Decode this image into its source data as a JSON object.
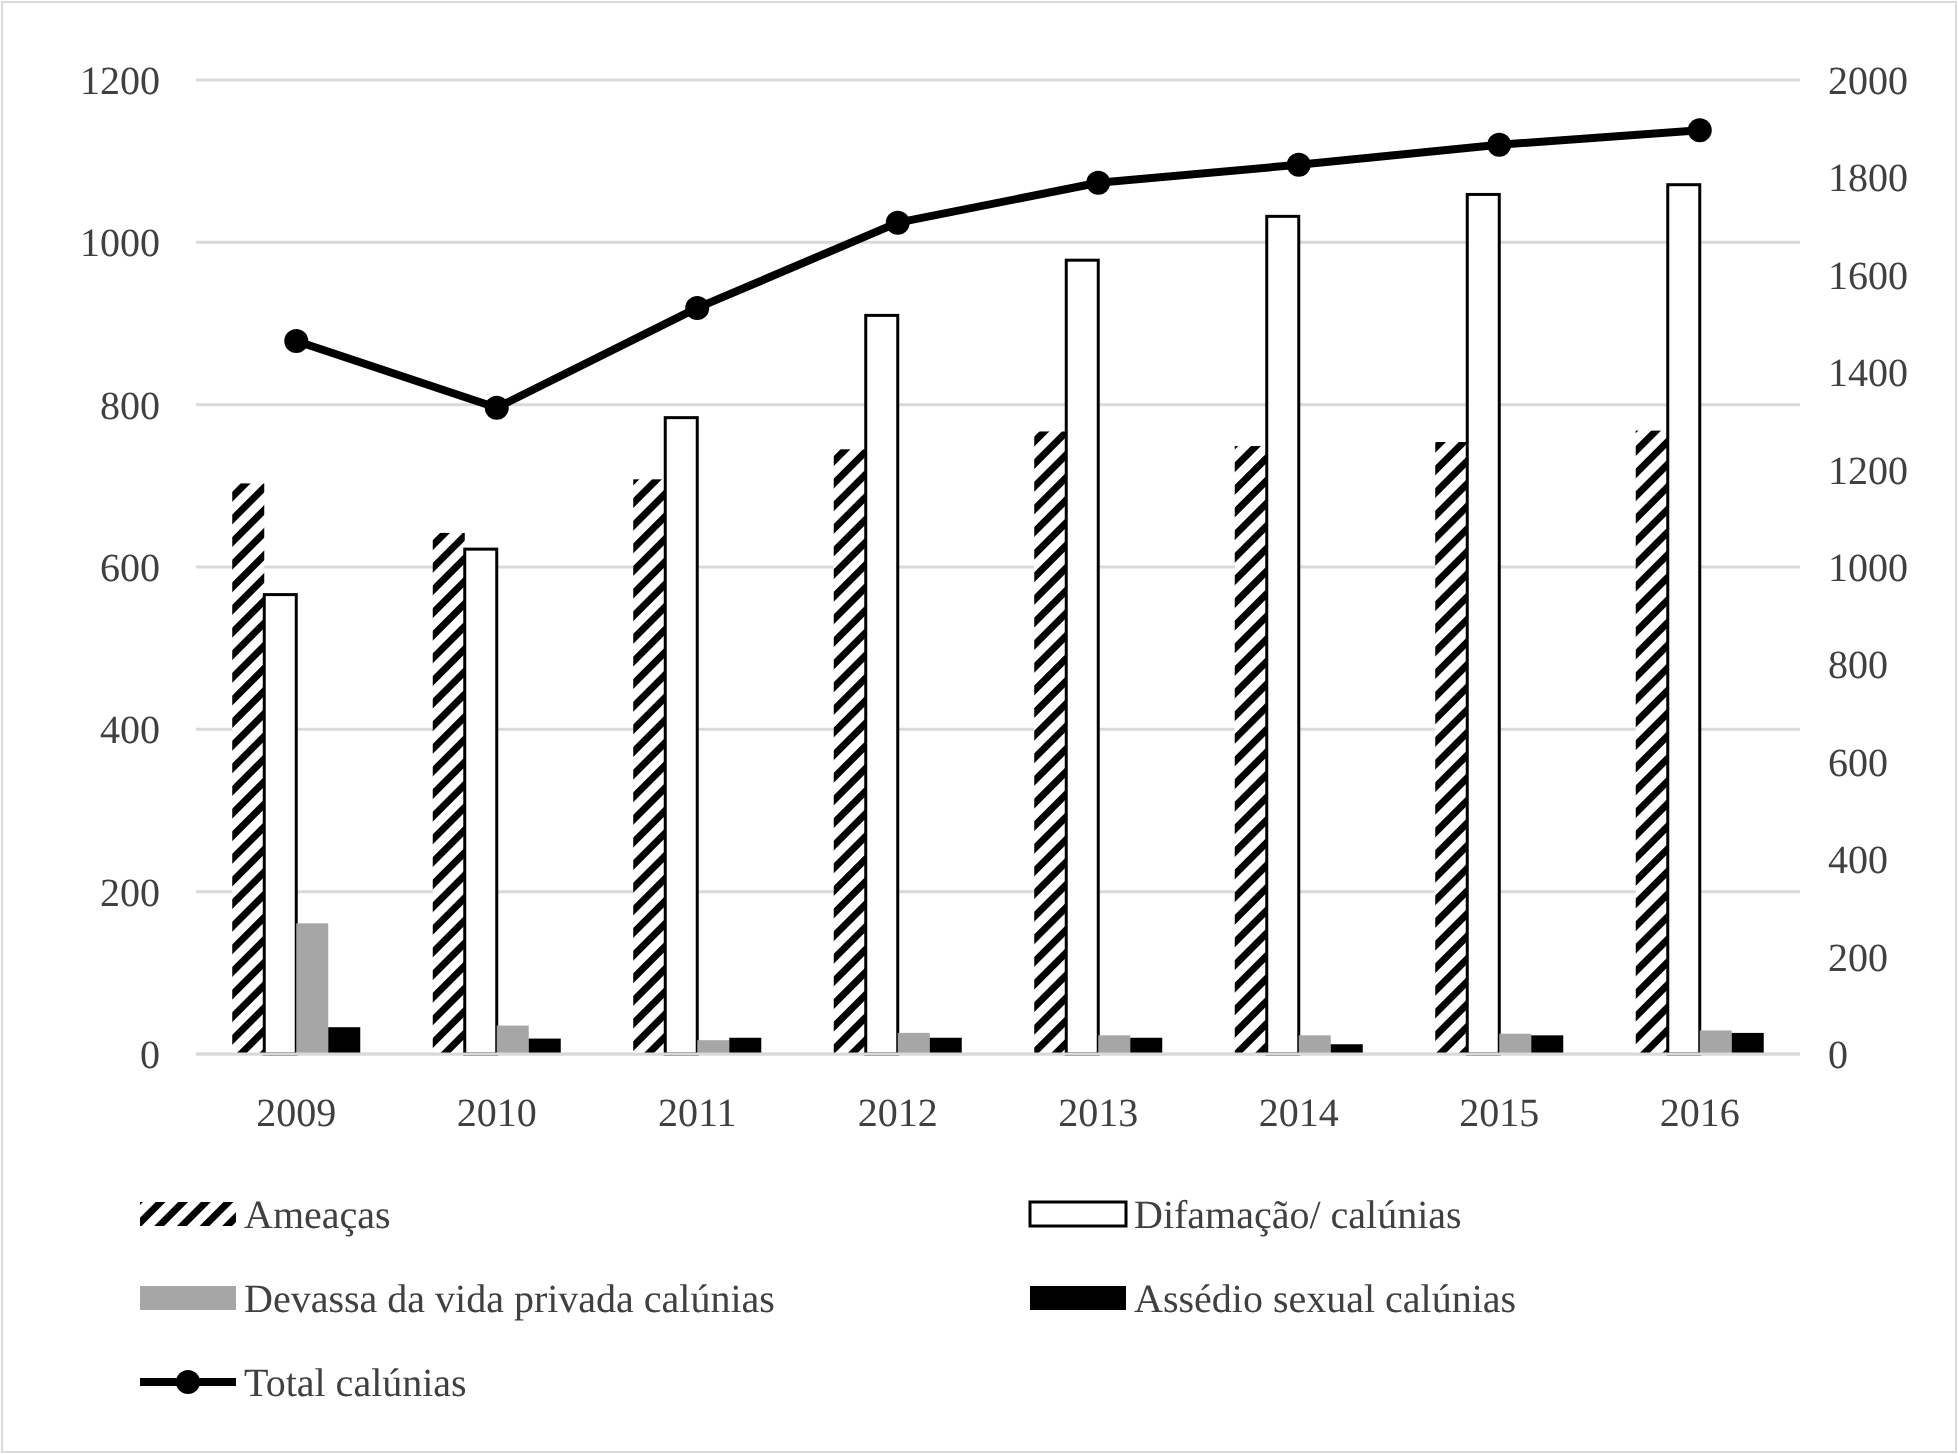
{
  "chart_data": {
    "type": "bar",
    "categories": [
      "2009",
      "2010",
      "2011",
      "2012",
      "2013",
      "2014",
      "2015",
      "2016"
    ],
    "series": [
      {
        "name": "Ameaças",
        "color": "#000000",
        "values": [
          703,
          642,
          708,
          745,
          767,
          749,
          754,
          768
        ]
      },
      {
        "name": "Difamação/ calúnias",
        "color": "#ffffff",
        "values": [
          566,
          622,
          784,
          910,
          978,
          1032,
          1059,
          1071
        ]
      },
      {
        "name": "Devassa da vida privada calúnias",
        "color": "#a6a6a6",
        "values": [
          161,
          35,
          17,
          26,
          23,
          23,
          25,
          29
        ]
      },
      {
        "name": "Assédio sexual calúnias",
        "color": "#000000",
        "values": [
          33,
          19,
          20,
          20,
          20,
          12,
          23,
          26
        ]
      },
      {
        "name": "Total calúnias",
        "type": "line",
        "axis": "y2",
        "color": "#000000",
        "values": [
          1464,
          1327,
          1532,
          1707,
          1789,
          1826,
          1867,
          1897
        ]
      }
    ],
    "ylim": [
      0,
      1200
    ],
    "yticks": [
      0,
      200,
      400,
      600,
      800,
      1000,
      1200
    ],
    "y2lim": [
      0,
      2000
    ],
    "y2ticks": [
      0,
      200,
      400,
      600,
      800,
      1000,
      1200,
      1400,
      1600,
      1800,
      2000
    ],
    "grid": "y",
    "legend": "bottom",
    "marker": "circle",
    "line_style": "solid"
  }
}
